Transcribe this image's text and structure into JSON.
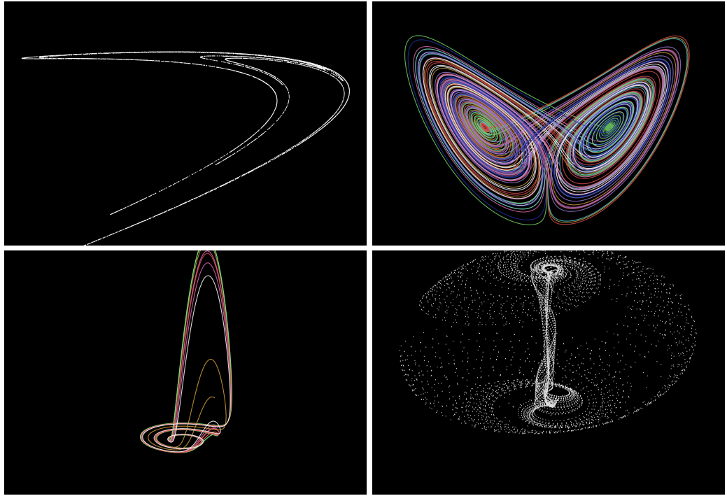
{
  "panels": [
    {
      "id": "henon-attractor",
      "description": "white",
      "color": "#ffffff"
    },
    {
      "id": "lorenz-attractor",
      "colors": [
        "#e86ab8",
        "#d6a03c",
        "#4fd0e0",
        "#7be06a",
        "#e05050",
        "#ffffff",
        "#a080e0",
        "#2030a0"
      ]
    },
    {
      "id": "rossler-attractor",
      "colors": [
        "#e86ab8",
        "#d6a03c",
        "#4fd0e0",
        "#7be06a",
        "#e05050",
        "#ffffff"
      ]
    },
    {
      "id": "point-cloud-attractor",
      "color": "#ffffff"
    }
  ]
}
